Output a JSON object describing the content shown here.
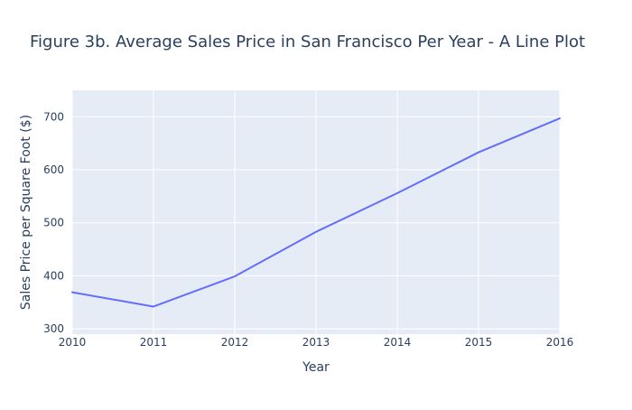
{
  "chart_data": {
    "type": "line",
    "title": "Figure 3b. Average Sales Price in San Francisco Per Year - A Line Plot",
    "xlabel": "Year",
    "ylabel": "Sales Price per Square Foot ($)",
    "x_ticks": [
      "2010",
      "2011",
      "2012",
      "2013",
      "2014",
      "2015",
      "2016"
    ],
    "y_ticks": [
      "300",
      "400",
      "500",
      "600",
      "700"
    ],
    "xlim": [
      2010,
      2016
    ],
    "ylim": [
      290,
      750
    ],
    "grid": true,
    "legend": "none",
    "series": [
      {
        "x": [
          2010,
          2011,
          2012,
          2013,
          2014,
          2015,
          2016
        ],
        "values": [
          369,
          342,
          399,
          483,
          556,
          633,
          697
        ]
      }
    ],
    "colors": {
      "plot_background": "#e5ecf6",
      "grid": "#ffffff",
      "line": "#636efa",
      "text": "#2a3f5f",
      "title": "#2a3f5f"
    }
  }
}
